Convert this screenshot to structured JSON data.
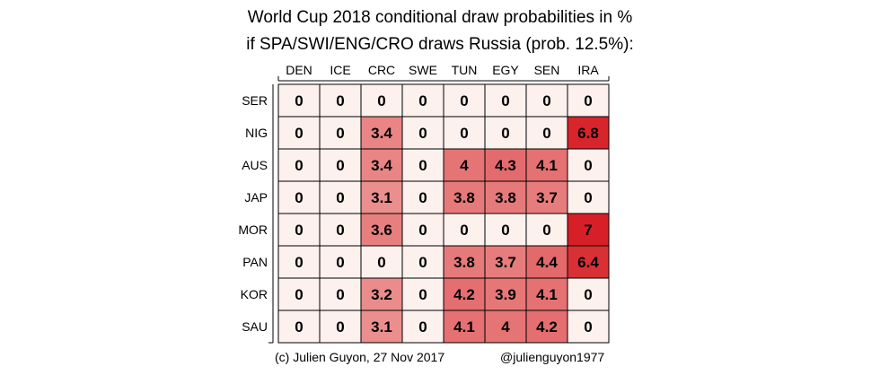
{
  "chart_data": {
    "type": "heatmap",
    "title": "World Cup 2018 conditional draw probabilities in %",
    "subtitle": "if SPA/SWI/ENG/CRO draws Russia (prob. 12.5%):",
    "columns": [
      "DEN",
      "ICE",
      "CRC",
      "SWE",
      "TUN",
      "EGY",
      "SEN",
      "IRA"
    ],
    "rows": [
      "SER",
      "NIG",
      "AUS",
      "JAP",
      "MOR",
      "PAN",
      "KOR",
      "SAU"
    ],
    "values": [
      [
        0,
        0,
        0,
        0,
        0,
        0,
        0,
        0
      ],
      [
        0,
        0,
        3.4,
        0,
        0,
        0,
        0,
        6.8
      ],
      [
        0,
        0,
        3.4,
        0,
        4,
        4.3,
        4.1,
        0
      ],
      [
        0,
        0,
        3.1,
        0,
        3.8,
        3.8,
        3.7,
        0
      ],
      [
        0,
        0,
        3.6,
        0,
        0,
        0,
        0,
        7
      ],
      [
        0,
        0,
        0,
        0,
        3.8,
        3.7,
        4.4,
        6.4
      ],
      [
        0,
        0,
        3.2,
        0,
        4.2,
        3.9,
        4.1,
        0
      ],
      [
        0,
        0,
        3.1,
        0,
        4.1,
        4,
        4.2,
        0
      ]
    ],
    "color_scale": {
      "low": "#fdf1ee",
      "high": "#d61f26",
      "vmin": 0,
      "vmax": 7
    }
  },
  "footer": {
    "credit": "(c) Julien Guyon, 27 Nov 2017",
    "handle": "@julienguyon1977"
  }
}
